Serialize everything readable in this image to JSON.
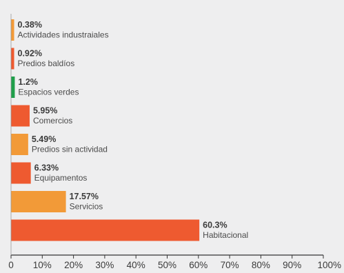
{
  "chart_data": {
    "type": "bar",
    "orientation": "horizontal",
    "title": "",
    "xlabel": "",
    "ylabel": "",
    "xlim": [
      0,
      100
    ],
    "x_ticks": [
      "0",
      "10%",
      "20%",
      "30%",
      "40%",
      "50%",
      "60%",
      "70%",
      "80%",
      "90%",
      "100%"
    ],
    "grid": false,
    "legend": "none",
    "categories": [
      "Actividades industraiales",
      "Predios baldíos",
      "Espacios verdes",
      "Comercios",
      "Predios sin actividad",
      "Equipamentos",
      "Servicios",
      "Habitacional"
    ],
    "values": [
      0.38,
      0.92,
      1.2,
      5.95,
      5.49,
      6.33,
      17.57,
      60.3
    ],
    "value_labels": [
      "0.38%",
      "0.92%",
      "1.2%",
      "5.95%",
      "5.49%",
      "6.33%",
      "17.57%",
      "60.3%"
    ],
    "bar_colors": [
      "#f29a38",
      "#ee5a30",
      "#1f9e4a",
      "#ee5a30",
      "#f29a38",
      "#ee5a30",
      "#f29a38",
      "#ee5a30"
    ]
  }
}
